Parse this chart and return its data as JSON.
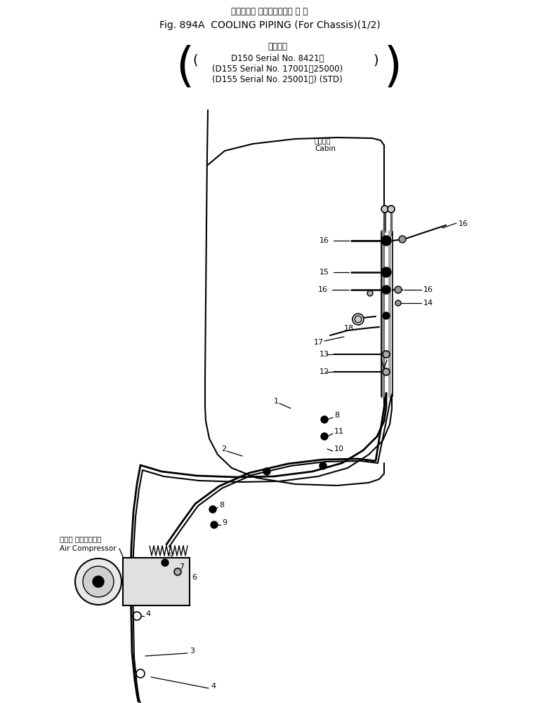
{
  "title_jp": "クーリング パイピング（車 体 用",
  "title_en": "Fig. 894A  COOLING PIPING (For Chassis)(1/2)",
  "subtitle_jp": "適用号機",
  "subtitle_d150": "D150 Serial No. 8421～",
  "subtitle_d155a": "(D155 Serial No. 17001～25000)",
  "subtitle_d155b": "(D155 Serial No. 25001～) (STD)",
  "cabin_jp": "キャビン",
  "cabin_en": "Cabin",
  "comp_jp": "エアー コンプレッサ",
  "comp_en": "Air Compressor",
  "bg_color": "#ffffff",
  "line_color": "#000000"
}
